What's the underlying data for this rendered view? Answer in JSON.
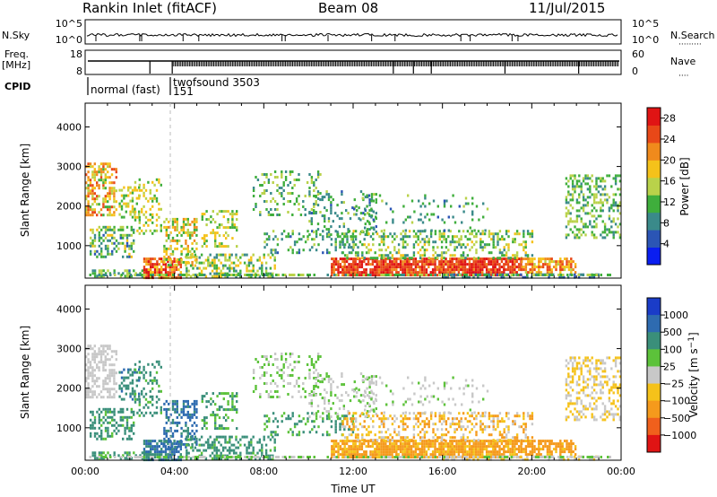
{
  "header": {
    "station": "Rankin Inlet (fitACF)",
    "beam": "Beam 08",
    "date": "11/Jul/2015"
  },
  "strip_labels": {
    "nsky": "N.Sky",
    "nsearch": "N.Search",
    "freq": "Freq.",
    "freq_unit": "[MHz]",
    "nave": "Nave",
    "cpid": "CPID",
    "nsky_top": "10^5",
    "nsky_bot": "10^0",
    "nsearch_top": "10^5",
    "nsearch_bot": "10^0",
    "freq_top": "18",
    "freq_bot": "8",
    "nave_top": "60",
    "nave_bot": "0"
  },
  "cpid_segments": [
    {
      "start_hour": 0.2,
      "label": "normal (fast)"
    },
    {
      "start_hour": 3.9,
      "label": "twofsound 3503"
    },
    {
      "start_hour": 3.9,
      "label": "151"
    }
  ],
  "chart_data": [
    {
      "type": "heatmap",
      "panel": "power",
      "xlabel": "",
      "ylabel": "Slant Range [km]",
      "xlim": [
        0,
        24
      ],
      "ylim": [
        180,
        4600
      ],
      "yticks": [
        1000,
        2000,
        3000,
        4000
      ],
      "colorbar": {
        "label": "Power [dB]",
        "ticks": [
          4,
          8,
          12,
          16,
          20,
          24,
          28
        ],
        "range": [
          0,
          30
        ],
        "colors": [
          "#0a1ef0",
          "#2b55b5",
          "#3a8a8a",
          "#3fae3c",
          "#b9d24a",
          "#f5c21a",
          "#f08a1c",
          "#e84818",
          "#e01414"
        ]
      }
    },
    {
      "type": "heatmap",
      "panel": "velocity",
      "xlabel": "Time UT",
      "ylabel": "Slant Range [km]",
      "xlim": [
        0,
        24
      ],
      "ylim": [
        180,
        4600
      ],
      "yticks": [
        1000,
        2000,
        3000,
        4000
      ],
      "xticks": [
        {
          "hour": 0,
          "label": "00:00"
        },
        {
          "hour": 4,
          "label": "04:00"
        },
        {
          "hour": 8,
          "label": "08:00"
        },
        {
          "hour": 12,
          "label": "12:00"
        },
        {
          "hour": 16,
          "label": "16:00"
        },
        {
          "hour": 20,
          "label": "20:00"
        },
        {
          "hour": 24,
          "label": "00:00"
        }
      ],
      "colorbar": {
        "label": "Velocity [m s^-1]",
        "ticks": [
          "1000",
          "500",
          "100",
          "25",
          "−25",
          "−100",
          "−500",
          "−1000"
        ],
        "colors": [
          "#1a3cc8",
          "#2e6bb0",
          "#3a8f7a",
          "#5cc23a",
          "#c8c8c8",
          "#f5c21a",
          "#f59a1c",
          "#f0601c",
          "#e01414"
        ]
      }
    }
  ],
  "scatter_regions": [
    {
      "t0": 0.0,
      "t1": 1.4,
      "r0": 1800,
      "r1": 3100,
      "density": 0.55,
      "pw": [
        12,
        26
      ],
      "vel": [
        -25,
        25
      ]
    },
    {
      "t0": 0.2,
      "t1": 2.2,
      "r0": 700,
      "r1": 1500,
      "density": 0.45,
      "pw": [
        6,
        18
      ],
      "vel": [
        25,
        400
      ]
    },
    {
      "t0": 1.5,
      "t1": 2.4,
      "r0": 1700,
      "r1": 2500,
      "density": 0.4,
      "pw": [
        10,
        20
      ],
      "vel": [
        100,
        600
      ]
    },
    {
      "t0": 0.3,
      "t1": 3.0,
      "r0": 200,
      "r1": 400,
      "density": 0.5,
      "pw": [
        6,
        16
      ],
      "vel": [
        25,
        300
      ]
    },
    {
      "t0": 2.6,
      "t1": 4.3,
      "r0": 200,
      "r1": 700,
      "density": 0.75,
      "pw": [
        18,
        30
      ],
      "vel": [
        100,
        1000
      ]
    },
    {
      "t0": 3.5,
      "t1": 5.0,
      "r0": 500,
      "r1": 1700,
      "density": 0.45,
      "pw": [
        10,
        22
      ],
      "vel": [
        300,
        1000
      ]
    },
    {
      "t0": 2.2,
      "t1": 3.4,
      "r0": 1300,
      "r1": 2700,
      "density": 0.3,
      "pw": [
        10,
        20
      ],
      "vel": [
        25,
        300
      ]
    },
    {
      "t0": 4.5,
      "t1": 8.5,
      "r0": 200,
      "r1": 800,
      "density": 0.4,
      "pw": [
        8,
        20
      ],
      "vel": [
        25,
        400
      ]
    },
    {
      "t0": 5.2,
      "t1": 6.8,
      "r0": 1000,
      "r1": 1900,
      "density": 0.3,
      "pw": [
        10,
        20
      ],
      "vel": [
        25,
        200
      ]
    },
    {
      "t0": 7.5,
      "t1": 10.5,
      "r0": 1800,
      "r1": 2900,
      "density": 0.22,
      "pw": [
        8,
        16
      ],
      "vel": [
        -25,
        100
      ]
    },
    {
      "t0": 8.0,
      "t1": 12.0,
      "r0": 800,
      "r1": 1400,
      "density": 0.25,
      "pw": [
        6,
        14
      ],
      "vel": [
        25,
        200
      ]
    },
    {
      "t0": 10.0,
      "t1": 13.0,
      "r0": 1300,
      "r1": 2400,
      "density": 0.2,
      "pw": [
        6,
        14
      ],
      "vel": [
        -25,
        50
      ]
    },
    {
      "t0": 11.0,
      "t1": 19.5,
      "r0": 250,
      "r1": 700,
      "density": 0.85,
      "pw": [
        22,
        30
      ],
      "vel": [
        -300,
        -25
      ]
    },
    {
      "t0": 11.5,
      "t1": 20.0,
      "r0": 700,
      "r1": 1400,
      "density": 0.35,
      "pw": [
        8,
        18
      ],
      "vel": [
        -200,
        25
      ]
    },
    {
      "t0": 12.0,
      "t1": 18.0,
      "r0": 1400,
      "r1": 2300,
      "density": 0.12,
      "pw": [
        6,
        14
      ],
      "vel": [
        -25,
        50
      ]
    },
    {
      "t0": 19.5,
      "t1": 22.0,
      "r0": 300,
      "r1": 700,
      "density": 0.65,
      "pw": [
        16,
        26
      ],
      "vel": [
        -400,
        -50
      ]
    },
    {
      "t0": 21.5,
      "t1": 24.0,
      "r0": 1200,
      "r1": 2800,
      "density": 0.35,
      "pw": [
        8,
        16
      ],
      "vel": [
        -100,
        25
      ]
    },
    {
      "t0": 16.0,
      "t1": 23.0,
      "r0": 200,
      "r1": 300,
      "density": 0.5,
      "pw": [
        4,
        10
      ],
      "vel": [
        -50,
        25
      ]
    }
  ]
}
